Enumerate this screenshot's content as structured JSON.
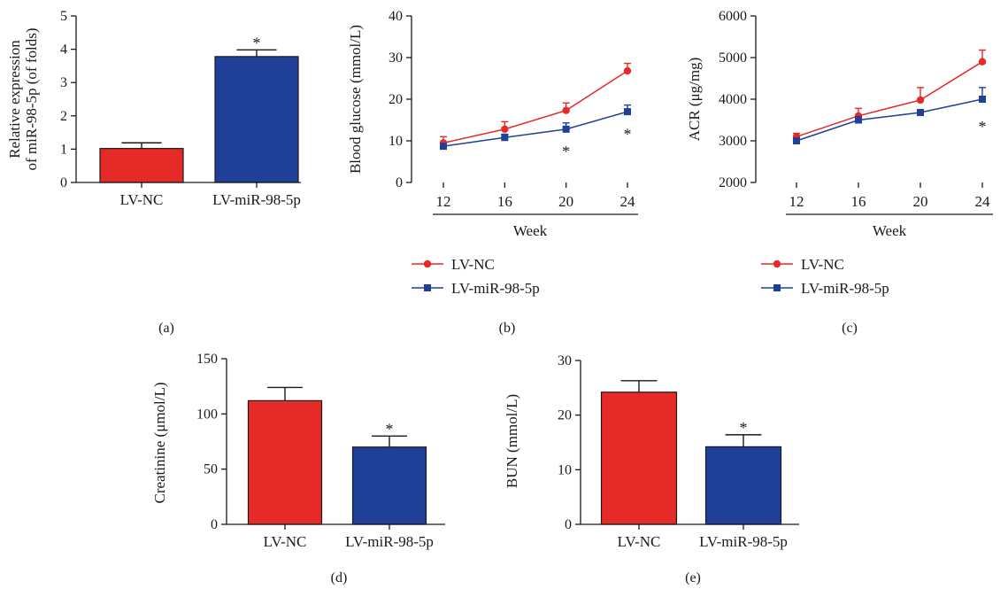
{
  "colors": {
    "red": "#e52a28",
    "blue": "#1f3f99",
    "axis": "#1a1a1a"
  },
  "star": "*",
  "chart_data": [
    {
      "panel": "(a)",
      "type": "bar",
      "title": "",
      "ylabel_lines": [
        "Relative expression",
        "of miR-98-5p (of folds)"
      ],
      "xlabel": "",
      "ylim": [
        0,
        5
      ],
      "yticks": [
        0,
        1,
        2,
        3,
        4,
        5
      ],
      "categories": [
        "LV-NC",
        "LV-miR-98-5p"
      ],
      "values": [
        1.02,
        3.78
      ],
      "errors": [
        0.17,
        0.2
      ],
      "colors": [
        "#e52a28",
        "#1f3f99"
      ],
      "significant": [
        false,
        true
      ]
    },
    {
      "panel": "(b)",
      "type": "line",
      "title": "",
      "ylabel": "Blood glucose (mmol/L)",
      "xlabel": "Week",
      "ylim": [
        0,
        40
      ],
      "yticks": [
        0,
        10,
        20,
        30,
        40
      ],
      "x": [
        12,
        16,
        20,
        24
      ],
      "series": [
        {
          "name": "LV-NC",
          "marker": "circle",
          "color": "#e52a28",
          "values": [
            9.5,
            12.8,
            17.3,
            26.8
          ],
          "errors": [
            1.5,
            1.8,
            1.8,
            1.8
          ]
        },
        {
          "name": "LV-miR-98-5p",
          "marker": "square",
          "color": "#1f3f99",
          "values": [
            8.7,
            10.8,
            12.8,
            17.0
          ],
          "errors": [
            0.6,
            0.8,
            1.5,
            1.6
          ]
        }
      ],
      "significant_x": [
        20,
        24
      ]
    },
    {
      "panel": "(c)",
      "type": "line",
      "title": "",
      "ylabel": "ACR (μg/mg)",
      "xlabel": "Week",
      "ylim": [
        2000,
        6000
      ],
      "yticks": [
        2000,
        3000,
        4000,
        5000,
        6000
      ],
      "x": [
        12,
        16,
        20,
        24
      ],
      "series": [
        {
          "name": "LV-NC",
          "marker": "circle",
          "color": "#e52a28",
          "values": [
            3100,
            3600,
            3980,
            4900
          ],
          "errors": [
            80,
            180,
            300,
            280
          ]
        },
        {
          "name": "LV-miR-98-5p",
          "marker": "square",
          "color": "#1f3f99",
          "values": [
            3000,
            3500,
            3680,
            4000
          ],
          "errors": [
            50,
            80,
            70,
            280
          ]
        }
      ],
      "significant_x": [
        24
      ]
    },
    {
      "panel": "(d)",
      "type": "bar",
      "title": "",
      "ylabel": "Creatinine (μmol/L)",
      "xlabel": "",
      "ylim": [
        0,
        150
      ],
      "yticks": [
        0,
        50,
        100,
        150
      ],
      "categories": [
        "LV-NC",
        "LV-miR-98-5p"
      ],
      "values": [
        112,
        70
      ],
      "errors": [
        12,
        10
      ],
      "colors": [
        "#e52a28",
        "#1f3f99"
      ],
      "significant": [
        false,
        true
      ]
    },
    {
      "panel": "(e)",
      "type": "bar",
      "title": "",
      "ylabel": "BUN (mmol/L)",
      "xlabel": "",
      "ylim": [
        0,
        30
      ],
      "yticks": [
        0,
        10,
        20,
        30
      ],
      "categories": [
        "LV-NC",
        "LV-miR-98-5p"
      ],
      "values": [
        24.2,
        14.2
      ],
      "errors": [
        2.1,
        2.2
      ],
      "colors": [
        "#e52a28",
        "#1f3f99"
      ],
      "significant": [
        false,
        true
      ]
    }
  ]
}
